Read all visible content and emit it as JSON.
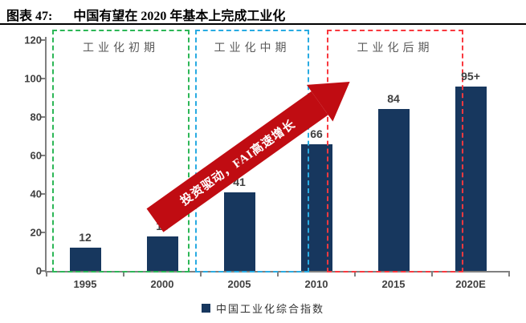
{
  "caption": {
    "figure_number": "图表 47:",
    "title": "中国有望在 2020 年基本上完成工业化"
  },
  "chart_data": {
    "type": "bar",
    "title": "中国有望在 2020 年基本上完成工业化",
    "categories": [
      "1995",
      "2000",
      "2005",
      "2010",
      "2015",
      "2020E"
    ],
    "values": [
      12,
      18,
      41,
      66,
      84,
      96
    ],
    "value_labels": [
      "12",
      "18",
      "41",
      "66",
      "84",
      "95+"
    ],
    "xlabel": "",
    "ylabel": "",
    "ylim": [
      0,
      120
    ],
    "yticks": [
      0,
      20,
      40,
      60,
      80,
      100,
      120
    ],
    "grid": false,
    "bar_color": "#17375E",
    "axis_color": "#808080",
    "legend_position": "bottom-center",
    "legend": [
      {
        "label": "中国工业化综合指数",
        "color": "#17375E"
      }
    ],
    "phases": [
      {
        "label": "工业化初期",
        "color": "#2DB757",
        "categories": [
          "1995",
          "2000"
        ]
      },
      {
        "label": "工业化中期",
        "color": "#29ABE2",
        "categories": [
          "2005",
          "2010"
        ]
      },
      {
        "label": "工业化后期",
        "color": "#F9393F",
        "categories": [
          "2015",
          "2020E"
        ]
      }
    ],
    "annotation": {
      "text": "投资驱动，FAI高速增长",
      "shape": "arrow-up-right",
      "color": "#C00C12",
      "text_color": "#FFFFFF"
    }
  }
}
